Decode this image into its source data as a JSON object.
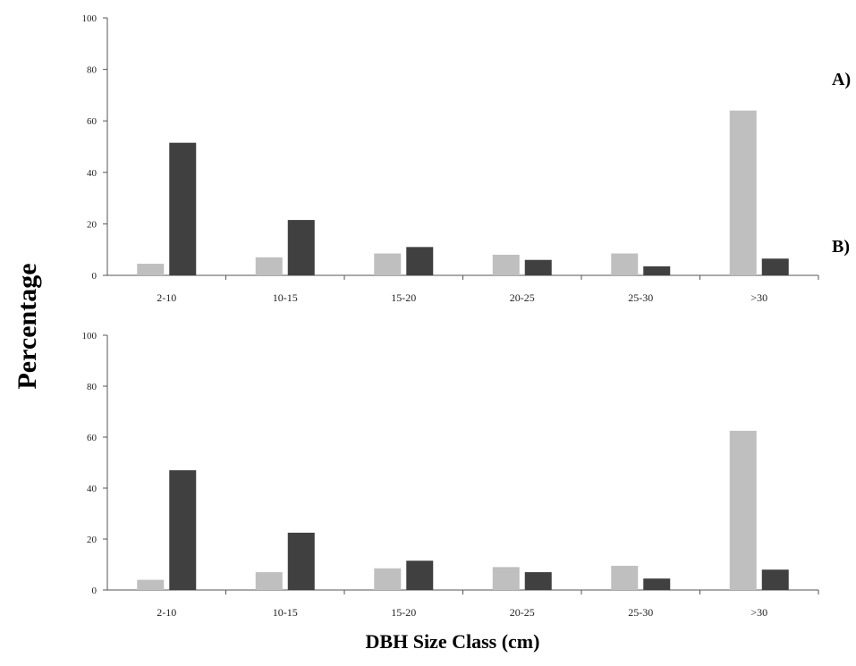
{
  "chart_data": [
    {
      "type": "bar",
      "panel_label": "A)",
      "categories": [
        "2-10",
        "10-15",
        "15-20",
        "20-25",
        "25-30",
        ">30"
      ],
      "series": [
        {
          "values": [
            4.5,
            7,
            8.5,
            8,
            8.5,
            64
          ],
          "color": "#bfbfbf"
        },
        {
          "values": [
            51.5,
            21.5,
            11,
            6,
            3.5,
            6.5
          ],
          "color": "#404040"
        }
      ],
      "ylim": [
        0,
        100
      ],
      "yticks": [
        0,
        20,
        40,
        60,
        80,
        100
      ]
    },
    {
      "type": "bar",
      "panel_label": "B)",
      "categories": [
        "2-10",
        "10-15",
        "15-20",
        "20-25",
        "25-30",
        ">30"
      ],
      "series": [
        {
          "values": [
            4,
            7,
            8.5,
            9,
            9.5,
            62.5
          ],
          "color": "#bfbfbf"
        },
        {
          "values": [
            47,
            22.5,
            11.5,
            7,
            4.5,
            8
          ],
          "color": "#404040"
        }
      ],
      "ylim": [
        0,
        100
      ],
      "yticks": [
        0,
        20,
        40,
        60,
        80,
        100
      ]
    }
  ],
  "shared": {
    "ylabel": "Percentage",
    "xlabel": "DBH Size Class (cm)"
  }
}
